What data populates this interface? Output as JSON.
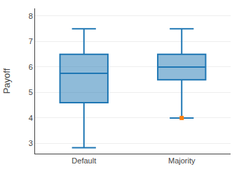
{
  "chart_data": {
    "type": "box",
    "ylabel": "Payoff",
    "categories": [
      "Default",
      "Majority"
    ],
    "boxes": [
      {
        "whisker_low": 2.83,
        "q1": 4.6,
        "median": 5.75,
        "q3": 6.5,
        "whisker_high": 7.5,
        "outliers": []
      },
      {
        "whisker_low": 4.0,
        "q1": 5.5,
        "median": 6.0,
        "q3": 6.5,
        "whisker_high": 7.5,
        "outliers": [
          4.0
        ]
      }
    ],
    "ylim": [
      2.6,
      8.3
    ],
    "yticks": [
      3,
      4,
      5,
      6,
      7,
      8
    ],
    "grid": true,
    "marker": "square"
  }
}
